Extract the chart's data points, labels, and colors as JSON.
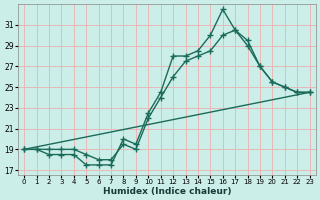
{
  "xlabel": "Humidex (Indice chaleur)",
  "bg_color": "#cceee8",
  "grid_color": "#e8b8b8",
  "line_color": "#1a6b5a",
  "xlim": [
    -0.5,
    23.5
  ],
  "ylim": [
    16.5,
    33.0
  ],
  "yticks": [
    17,
    19,
    21,
    23,
    25,
    27,
    29,
    31
  ],
  "ytick_labels": [
    "17",
    "19",
    "21",
    "23",
    "25",
    "27",
    "29",
    "31"
  ],
  "xticks": [
    0,
    1,
    2,
    3,
    4,
    5,
    6,
    7,
    8,
    9,
    10,
    11,
    12,
    13,
    14,
    15,
    16,
    17,
    18,
    19,
    20,
    21,
    22,
    23
  ],
  "line1_x": [
    0,
    1,
    2,
    3,
    4,
    5,
    6,
    7,
    8,
    9,
    10,
    11,
    12,
    13,
    14,
    15,
    16,
    17,
    18,
    19,
    20,
    21,
    22,
    23
  ],
  "line1_y": [
    19,
    19,
    19,
    19,
    19,
    18.5,
    18,
    18,
    19.5,
    19,
    22,
    24,
    26,
    27.5,
    28,
    28.5,
    30,
    30.5,
    29,
    27,
    25.5,
    25,
    24.5,
    24.5
  ],
  "line2_x": [
    0,
    1,
    2,
    3,
    4,
    5,
    6,
    7,
    8,
    9,
    10,
    11,
    12,
    13,
    14,
    15,
    16,
    17,
    18,
    19,
    20,
    21,
    22,
    23
  ],
  "line2_y": [
    19,
    19,
    18.5,
    18.5,
    18.5,
    17.5,
    17.5,
    17.5,
    20,
    19.5,
    22.5,
    24.5,
    28,
    28,
    28.5,
    30,
    32.5,
    30.5,
    29.5,
    27,
    25.5,
    25,
    24.5,
    24.5
  ],
  "line3_x": [
    0,
    23
  ],
  "line3_y": [
    19,
    24.5
  ],
  "marker_size": 3,
  "linewidth": 1.0
}
